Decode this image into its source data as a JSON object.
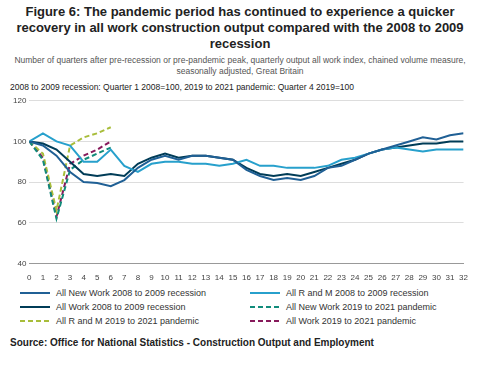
{
  "chart_data": {
    "type": "line",
    "title": "Figure 6: The pandemic period has continued to experience a quicker recovery in all work construction output compared with the 2008 to 2009 recession",
    "subtitle": "Number of quarters after pre-recession or pre-pandemic peak, quarterly output all work index, chained volume measure, seasonally adjusted, Great Britain",
    "annotation": "2008 to 2009 recession: Quarter 1 2008=100, 2019 to 2021 pandemic: Quarter 4 2019=100",
    "source": "Source: Office for National Statistics - Construction Output and Employment",
    "x": [
      0,
      1,
      2,
      3,
      4,
      5,
      6,
      7,
      8,
      9,
      10,
      11,
      12,
      13,
      14,
      15,
      16,
      17,
      18,
      19,
      20,
      21,
      22,
      23,
      24,
      25,
      26,
      27,
      28,
      29,
      30,
      31,
      32
    ],
    "xlim": [
      0,
      32
    ],
    "xticks": [
      0,
      1,
      2,
      3,
      4,
      5,
      6,
      7,
      8,
      9,
      10,
      11,
      12,
      13,
      14,
      15,
      16,
      17,
      18,
      19,
      20,
      21,
      22,
      23,
      24,
      25,
      26,
      27,
      28,
      29,
      30,
      31,
      32
    ],
    "ylim": [
      40,
      120
    ],
    "yticks": [
      40,
      60,
      80,
      100,
      120
    ],
    "grid": true,
    "legend": "bottom",
    "series": [
      {
        "name": "All New Work 2008 to 2009 recession",
        "color": "#206095",
        "line_style": "solid",
        "values": [
          100,
          98,
          93,
          85,
          80,
          79.5,
          78,
          81,
          87,
          91,
          93,
          91,
          93,
          93,
          92,
          91,
          86,
          83,
          81,
          82,
          81,
          83,
          87,
          88,
          91,
          94,
          96,
          98,
          100,
          102,
          101,
          103,
          104
        ]
      },
      {
        "name": "All R and M 2008 to 2009 recession",
        "color": "#27a0cc",
        "line_style": "solid",
        "values": [
          100,
          104,
          100,
          98,
          90,
          90,
          96,
          88,
          85,
          89,
          90,
          90,
          89,
          89,
          88,
          89,
          91,
          88,
          88,
          87,
          87,
          87,
          88,
          91,
          92,
          94,
          96,
          97,
          96,
          95,
          96,
          96,
          96
        ]
      },
      {
        "name": "All Work 2008 to 2009 recession",
        "color": "#003c57",
        "line_style": "solid",
        "values": [
          100,
          99,
          96,
          90,
          84,
          83,
          84,
          83,
          89,
          92,
          94,
          92,
          93,
          93,
          92,
          91,
          87,
          84,
          83,
          84,
          83,
          85,
          87,
          89,
          91,
          94,
          96,
          97,
          98,
          99,
          99,
          100,
          100
        ]
      },
      {
        "name": "All New Work 2019 to 2021 pandemic",
        "color": "#118c7b",
        "line_style": "dashed",
        "values": [
          100,
          91,
          62,
          86,
          91,
          94,
          97,
          null,
          null,
          null,
          null,
          null,
          null,
          null,
          null,
          null,
          null,
          null,
          null,
          null,
          null,
          null,
          null,
          null,
          null,
          null,
          null,
          null,
          null,
          null,
          null,
          null,
          null
        ]
      },
      {
        "name": "All R and M 2019 to 2021 pandemic",
        "color": "#a8bd3a",
        "line_style": "dashed",
        "values": [
          100,
          94,
          66,
          98,
          102,
          104,
          107,
          null,
          null,
          null,
          null,
          null,
          null,
          null,
          null,
          null,
          null,
          null,
          null,
          null,
          null,
          null,
          null,
          null,
          null,
          null,
          null,
          null,
          null,
          null,
          null,
          null,
          null
        ]
      },
      {
        "name": "All Work 2019 to 2021 pandemic",
        "color": "#871a5b",
        "line_style": "dashed",
        "values": [
          100,
          92,
          63,
          89,
          93,
          96,
          100,
          null,
          null,
          null,
          null,
          null,
          null,
          null,
          null,
          null,
          null,
          null,
          null,
          null,
          null,
          null,
          null,
          null,
          null,
          null,
          null,
          null,
          null,
          null,
          null,
          null,
          null
        ]
      }
    ]
  }
}
